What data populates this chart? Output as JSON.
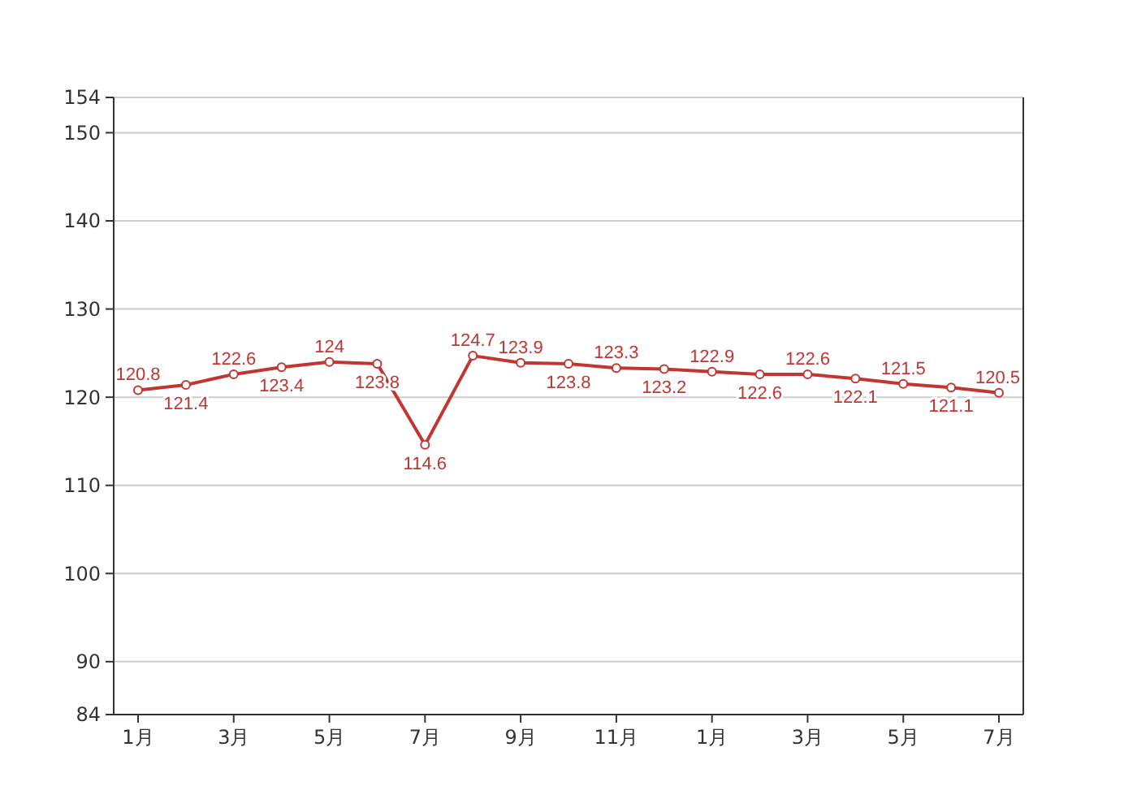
{
  "chart_data": {
    "type": "line",
    "categories": [
      "1月",
      null,
      "3月",
      null,
      "5月",
      null,
      "7月",
      null,
      "9月",
      null,
      "11月",
      null,
      "1月",
      null,
      "3月",
      null,
      "5月",
      null,
      "7月"
    ],
    "series": [
      {
        "color": "#c23531",
        "values": [
          120.8,
          121.4,
          122.6,
          123.4,
          124,
          123.8,
          114.6,
          124.7,
          123.9,
          123.8,
          123.3,
          123.2,
          122.9,
          122.6,
          122.6,
          122.1,
          121.5,
          121.1,
          120.5
        ]
      }
    ],
    "ylim": [
      84,
      154
    ],
    "yticks": [
      84,
      90,
      100,
      110,
      120,
      130,
      140,
      150,
      154
    ],
    "grid": "y",
    "marker": "circle",
    "data_labels": true
  }
}
